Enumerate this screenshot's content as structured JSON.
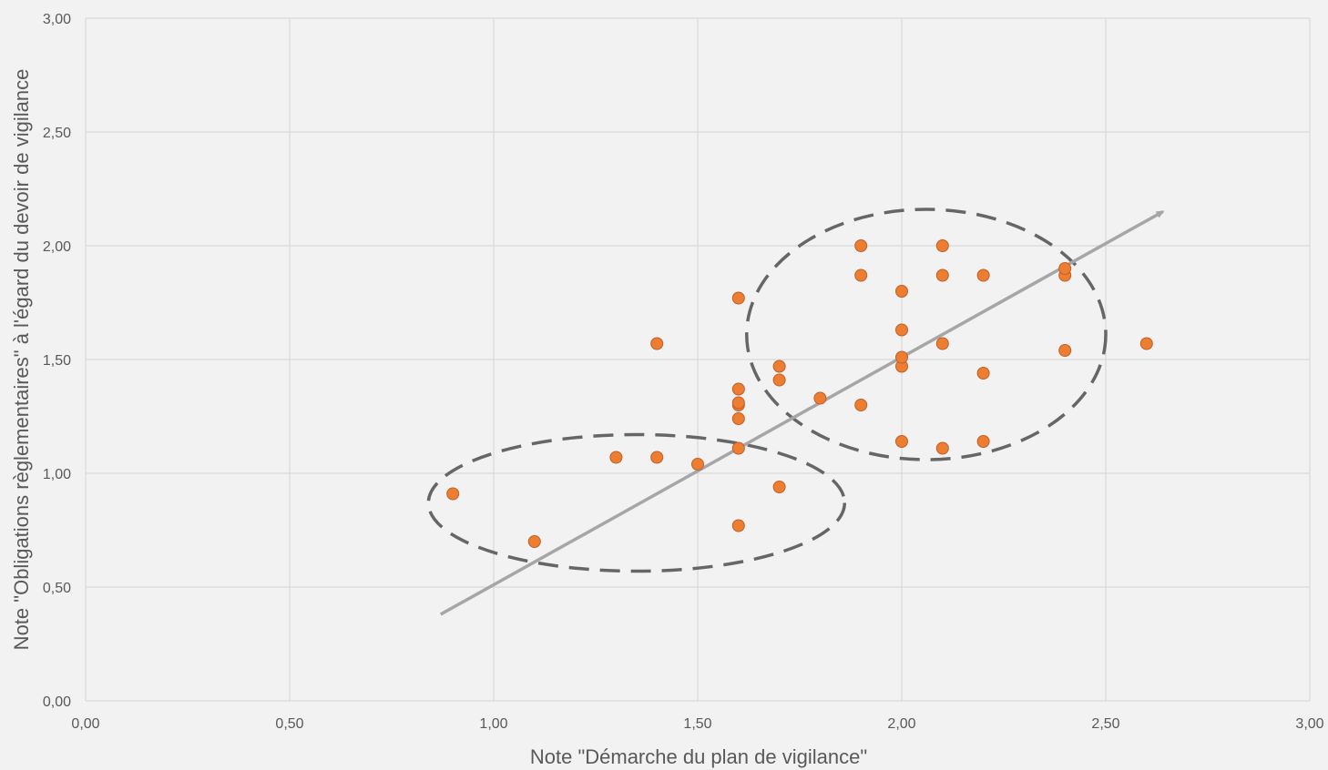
{
  "chart_data": {
    "type": "scatter",
    "title": "",
    "xlabel": "Note \"Démarche du plan de vigilance\"",
    "ylabel": "Note \"Obligations règlementaires\" à l'égard du devoir de vigilance",
    "xlim": [
      0,
      3
    ],
    "ylim": [
      0,
      3
    ],
    "x_ticks": [
      0,
      0.5,
      1,
      1.5,
      2,
      2.5,
      3
    ],
    "y_ticks": [
      0,
      0.5,
      1,
      1.5,
      2,
      2.5,
      3
    ],
    "x_tick_labels": [
      "0,00",
      "0,50",
      "1,00",
      "1,50",
      "2,00",
      "2,50",
      "3,00"
    ],
    "y_tick_labels": [
      "0,00",
      "0,50",
      "1,00",
      "1,50",
      "2,00",
      "2,50",
      "3,00"
    ],
    "grid": true,
    "legend": "none",
    "point_color": "#ed7d31",
    "point_edge_color": "#c0602a",
    "grid_color": "#d9d9d9",
    "trend_color": "#a6a6a6",
    "ellipse_color": "#666666",
    "points": [
      {
        "x": 0.9,
        "y": 0.91
      },
      {
        "x": 1.1,
        "y": 0.7
      },
      {
        "x": 1.3,
        "y": 1.07
      },
      {
        "x": 1.4,
        "y": 1.07
      },
      {
        "x": 1.4,
        "y": 1.57
      },
      {
        "x": 1.5,
        "y": 1.04
      },
      {
        "x": 1.6,
        "y": 0.77
      },
      {
        "x": 1.6,
        "y": 1.11
      },
      {
        "x": 1.6,
        "y": 1.24
      },
      {
        "x": 1.6,
        "y": 1.3
      },
      {
        "x": 1.6,
        "y": 1.31
      },
      {
        "x": 1.6,
        "y": 1.37
      },
      {
        "x": 1.6,
        "y": 1.77
      },
      {
        "x": 1.7,
        "y": 0.94
      },
      {
        "x": 1.7,
        "y": 1.41
      },
      {
        "x": 1.7,
        "y": 1.47
      },
      {
        "x": 1.8,
        "y": 1.33
      },
      {
        "x": 1.9,
        "y": 1.3
      },
      {
        "x": 1.9,
        "y": 1.87
      },
      {
        "x": 1.9,
        "y": 2.0
      },
      {
        "x": 2.0,
        "y": 1.14
      },
      {
        "x": 2.0,
        "y": 1.47
      },
      {
        "x": 2.0,
        "y": 1.51
      },
      {
        "x": 2.0,
        "y": 1.63
      },
      {
        "x": 2.0,
        "y": 1.8
      },
      {
        "x": 2.1,
        "y": 1.11
      },
      {
        "x": 2.1,
        "y": 1.57
      },
      {
        "x": 2.1,
        "y": 1.87
      },
      {
        "x": 2.1,
        "y": 2.0
      },
      {
        "x": 2.2,
        "y": 1.14
      },
      {
        "x": 2.2,
        "y": 1.44
      },
      {
        "x": 2.2,
        "y": 1.87
      },
      {
        "x": 2.4,
        "y": 1.54
      },
      {
        "x": 2.4,
        "y": 1.87
      },
      {
        "x": 2.4,
        "y": 1.9
      },
      {
        "x": 2.6,
        "y": 1.57
      }
    ],
    "trend_arrow": {
      "from": [
        0.87,
        0.38
      ],
      "to": [
        2.64,
        2.15
      ]
    },
    "ellipses": [
      {
        "cx": 1.35,
        "cy": 0.87,
        "rx": 0.51,
        "ry": 0.3
      },
      {
        "cx": 2.06,
        "cy": 1.61,
        "rx": 0.44,
        "ry": 0.55
      }
    ]
  }
}
